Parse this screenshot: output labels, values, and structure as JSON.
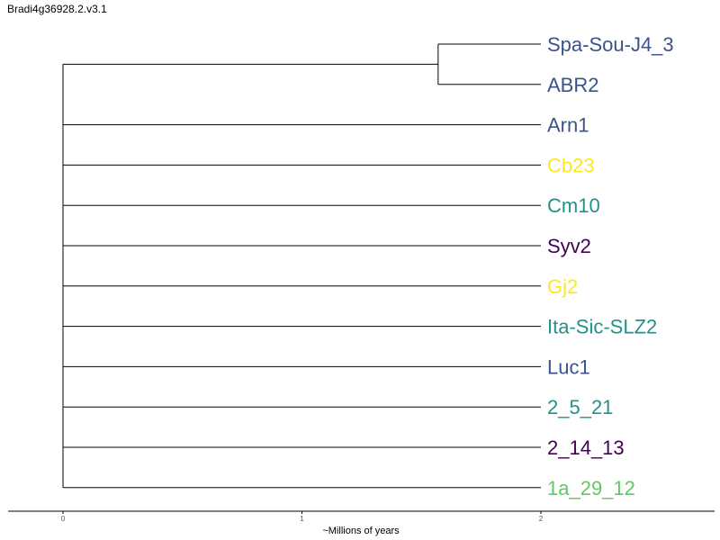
{
  "title": "Bradi4g36928.2.v3.1",
  "tree": {
    "x_axis": {
      "label": "~Millions of years",
      "ticks": [
        {
          "value": 0,
          "label": "0"
        },
        {
          "value": 1,
          "label": "1"
        },
        {
          "value": 2,
          "label": "2"
        }
      ],
      "range": [
        0,
        2.7
      ]
    },
    "root_height": 0,
    "tip_distance": 2,
    "clades": [
      {
        "node_height": 1.57,
        "tips": [
          {
            "name": "Spa-Sou-J4_3",
            "color": "#3b528b"
          },
          {
            "name": "ABR2",
            "color": "#3b528b"
          }
        ]
      },
      {
        "tips": [
          {
            "name": "Arn1",
            "color": "#3b528b"
          }
        ]
      },
      {
        "tips": [
          {
            "name": "Cb23",
            "color": "#fde725"
          }
        ]
      },
      {
        "tips": [
          {
            "name": "Cm10",
            "color": "#21918c"
          }
        ]
      },
      {
        "tips": [
          {
            "name": "Syv2",
            "color": "#440154"
          }
        ]
      },
      {
        "tips": [
          {
            "name": "Gj2",
            "color": "#fde725"
          }
        ]
      },
      {
        "tips": [
          {
            "name": "Ita-Sic-SLZ2",
            "color": "#21918c"
          }
        ]
      },
      {
        "tips": [
          {
            "name": "Luc1",
            "color": "#3b528b"
          }
        ]
      },
      {
        "tips": [
          {
            "name": "2_5_21",
            "color": "#21918c"
          }
        ]
      },
      {
        "tips": [
          {
            "name": "2_14_13",
            "color": "#440154"
          }
        ]
      },
      {
        "tips": [
          {
            "name": "1a_29_12",
            "color": "#5ec962"
          }
        ]
      }
    ],
    "line_color": "#000000"
  }
}
